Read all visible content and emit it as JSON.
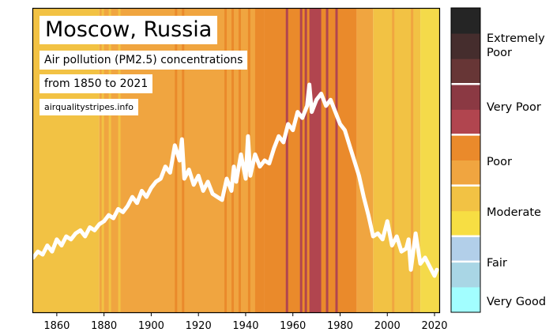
{
  "chart_data": {
    "type": "area",
    "title": "Moscow, Russia",
    "subtitle_lines": [
      "Air pollution (PM2.5) concentrations",
      "from 1850 to 2021"
    ],
    "source": "airqualitystripes.info",
    "xlabel": "",
    "ylabel": "",
    "xlim": [
      1850,
      2022
    ],
    "ylim": [
      0,
      100
    ],
    "x_ticks": [
      1860,
      1880,
      1900,
      1920,
      1940,
      1960,
      1980,
      2000,
      2020
    ],
    "y_axis_shown": false,
    "grid": false,
    "stripes": [
      {
        "from": 1850,
        "to": 1878,
        "category": "Moderate"
      },
      {
        "from": 1878,
        "to": 1948,
        "category": "Poor"
      },
      {
        "from": 1879,
        "to": 1880,
        "category": "Moderate"
      },
      {
        "from": 1882,
        "to": 1883,
        "category": "Moderate"
      },
      {
        "from": 1886,
        "to": 1887,
        "category": "Moderate"
      },
      {
        "from": 1910,
        "to": 1911,
        "category": "Poor (high)"
      },
      {
        "from": 1913,
        "to": 1914,
        "category": "Poor (high)"
      },
      {
        "from": 1931,
        "to": 1932,
        "category": "Poor (high)"
      },
      {
        "from": 1934,
        "to": 1935,
        "category": "Poor (high)"
      },
      {
        "from": 1937,
        "to": 1938,
        "category": "Poor (high)"
      },
      {
        "from": 1941,
        "to": 1942,
        "category": "Poor (high)"
      },
      {
        "from": 1944,
        "to": 1948,
        "category": "Poor (high)"
      },
      {
        "from": 1948,
        "to": 1987,
        "category": "Poor (high)"
      },
      {
        "from": 1957,
        "to": 1958,
        "category": "Very Poor"
      },
      {
        "from": 1963,
        "to": 1964,
        "category": "Very Poor"
      },
      {
        "from": 1965,
        "to": 1966,
        "category": "Very Poor"
      },
      {
        "from": 1967,
        "to": 1972,
        "category": "Very Poor"
      },
      {
        "from": 1974,
        "to": 1975,
        "category": "Very Poor"
      },
      {
        "from": 1978,
        "to": 1979,
        "category": "Very Poor"
      },
      {
        "from": 1987,
        "to": 1994,
        "category": "Poor"
      },
      {
        "from": 1994,
        "to": 2014,
        "category": "Moderate"
      },
      {
        "from": 2002,
        "to": 2003,
        "category": "Poor"
      },
      {
        "from": 2010,
        "to": 2011,
        "category": "Poor"
      },
      {
        "from": 2014,
        "to": 2022,
        "category": "Moderate (low)"
      }
    ],
    "series": [
      {
        "x": [
          1850,
          1852,
          1854,
          1856,
          1858,
          1860,
          1862,
          1864,
          1866,
          1868,
          1870,
          1872,
          1874,
          1876,
          1878,
          1880,
          1882,
          1884,
          1886,
          1888,
          1890,
          1892,
          1894,
          1896,
          1898,
          1900,
          1902,
          1904,
          1906,
          1908,
          1910,
          1912,
          1913,
          1914,
          1916,
          1918,
          1920,
          1922,
          1924,
          1926,
          1928,
          1930,
          1932,
          1934,
          1935,
          1936,
          1938,
          1940,
          1941,
          1942,
          1944,
          1946,
          1948,
          1950,
          1952,
          1954,
          1956,
          1958,
          1960,
          1962,
          1964,
          1966,
          1967,
          1968,
          1970,
          1972,
          1974,
          1976,
          1978,
          1980,
          1982,
          1984,
          1986,
          1988,
          1990,
          1992,
          1994,
          1996,
          1998,
          2000,
          2002,
          2004,
          2006,
          2008,
          2009,
          2010,
          2012,
          2014,
          2016,
          2018,
          2020,
          2021
        ],
        "values": [
          18,
          20,
          19,
          22,
          20,
          24,
          22,
          25,
          24,
          26,
          27,
          25,
          28,
          27,
          29,
          30,
          32,
          31,
          34,
          33,
          35,
          38,
          36,
          40,
          38,
          41,
          43,
          44,
          48,
          46,
          55,
          50,
          57,
          44,
          47,
          42,
          45,
          40,
          43,
          39,
          38,
          37,
          44,
          40,
          48,
          43,
          52,
          44,
          58,
          45,
          52,
          48,
          50,
          49,
          54,
          58,
          56,
          62,
          60,
          66,
          64,
          68,
          75,
          66,
          70,
          72,
          68,
          70,
          66,
          62,
          60,
          55,
          50,
          45,
          38,
          32,
          25,
          26,
          24,
          30,
          22,
          25,
          20,
          21,
          24,
          14,
          26,
          16,
          18,
          15,
          12,
          14
        ]
      }
    ],
    "colorbar": {
      "segments": [
        {
          "color": "#a2feff"
        },
        {
          "color": "#a9d6e5"
        },
        {
          "color": "#b2cfe9"
        },
        {
          "color": "#f7de43"
        },
        {
          "color": "#f2c244"
        },
        {
          "color": "#f0a540"
        },
        {
          "color": "#ea8a2b"
        },
        {
          "color": "#b1454f"
        },
        {
          "color": "#8b3943"
        },
        {
          "color": "#673636"
        },
        {
          "color": "#452d2d"
        },
        {
          "color": "#252525"
        }
      ],
      "labels": [
        "Very Good",
        "Fair",
        "Moderate",
        "Poor",
        "Very Poor",
        "Extremely Poor"
      ]
    },
    "colors": {
      "moderate_low": "#f4da4a",
      "moderate": "#f2c244",
      "poor": "#f0a540",
      "poor_high": "#ea8a2b",
      "very_poor": "#b1454f",
      "line": "#ffffff"
    }
  }
}
